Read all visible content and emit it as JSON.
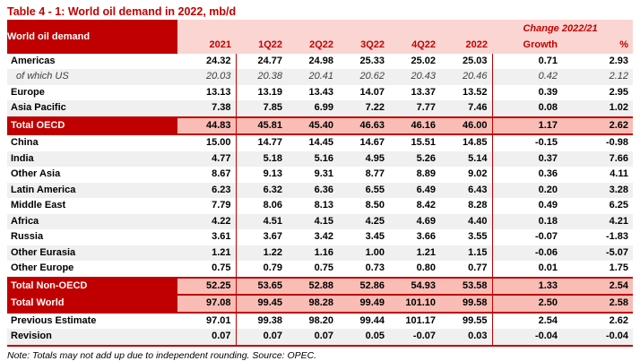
{
  "title": "Table 4 - 1: World oil demand in 2022, mb/d",
  "note": "Note: Totals may not add up due to independent rounding. Source: OPEC.",
  "colors": {
    "dark_red": "#C00000",
    "border_red": "#C00000",
    "header_pink": "#FBD5D1",
    "total_pink": "#F9BDB5",
    "stripe_gray": "#F0F0F0"
  },
  "table": {
    "corner_label": "World oil demand",
    "change_group_label": "Change 2022/21",
    "columns": [
      "2021",
      "1Q22",
      "2Q22",
      "3Q22",
      "4Q22",
      "2022",
      "Growth",
      "%"
    ],
    "rows": [
      {
        "label": "Americas",
        "style": "plain",
        "shade": false,
        "values": [
          "24.32",
          "24.77",
          "24.98",
          "25.33",
          "25.02",
          "25.03",
          "0.71",
          "2.93"
        ]
      },
      {
        "label": "of which US",
        "style": "italic",
        "shade": true,
        "values": [
          "20.03",
          "20.38",
          "20.41",
          "20.62",
          "20.43",
          "20.46",
          "0.42",
          "2.12"
        ]
      },
      {
        "label": "Europe",
        "style": "plain",
        "shade": false,
        "values": [
          "13.13",
          "13.19",
          "13.43",
          "14.07",
          "13.37",
          "13.52",
          "0.39",
          "2.95"
        ]
      },
      {
        "label": "Asia Pacific",
        "style": "plain",
        "shade": true,
        "values": [
          "7.38",
          "7.85",
          "6.99",
          "7.22",
          "7.77",
          "7.46",
          "0.08",
          "1.02"
        ]
      },
      {
        "label": "Total OECD",
        "style": "total",
        "shade": false,
        "values": [
          "44.83",
          "45.81",
          "45.40",
          "46.63",
          "46.16",
          "46.00",
          "1.17",
          "2.62"
        ]
      },
      {
        "label": "China",
        "style": "plain",
        "shade": false,
        "values": [
          "15.00",
          "14.77",
          "14.45",
          "14.67",
          "15.51",
          "14.85",
          "-0.15",
          "-0.98"
        ]
      },
      {
        "label": "India",
        "style": "plain",
        "shade": true,
        "values": [
          "4.77",
          "5.18",
          "5.16",
          "4.95",
          "5.26",
          "5.14",
          "0.37",
          "7.66"
        ]
      },
      {
        "label": "Other Asia",
        "style": "plain",
        "shade": false,
        "values": [
          "8.67",
          "9.13",
          "9.31",
          "8.77",
          "8.89",
          "9.02",
          "0.36",
          "4.11"
        ]
      },
      {
        "label": "Latin America",
        "style": "plain",
        "shade": true,
        "values": [
          "6.23",
          "6.32",
          "6.36",
          "6.55",
          "6.49",
          "6.43",
          "0.20",
          "3.28"
        ]
      },
      {
        "label": "Middle East",
        "style": "plain",
        "shade": false,
        "values": [
          "7.79",
          "8.06",
          "8.13",
          "8.50",
          "8.42",
          "8.28",
          "0.49",
          "6.25"
        ]
      },
      {
        "label": "Africa",
        "style": "plain",
        "shade": true,
        "values": [
          "4.22",
          "4.51",
          "4.15",
          "4.25",
          "4.69",
          "4.40",
          "0.18",
          "4.21"
        ]
      },
      {
        "label": "Russia",
        "style": "plain",
        "shade": false,
        "values": [
          "3.61",
          "3.67",
          "3.42",
          "3.45",
          "3.66",
          "3.55",
          "-0.07",
          "-1.83"
        ]
      },
      {
        "label": "Other Eurasia",
        "style": "plain",
        "shade": true,
        "values": [
          "1.21",
          "1.22",
          "1.16",
          "1.00",
          "1.21",
          "1.15",
          "-0.06",
          "-5.07"
        ]
      },
      {
        "label": "Other Europe",
        "style": "plain",
        "shade": false,
        "values": [
          "0.75",
          "0.79",
          "0.75",
          "0.73",
          "0.80",
          "0.77",
          "0.01",
          "1.75"
        ]
      },
      {
        "label": "Total Non-OECD",
        "style": "total",
        "shade": false,
        "values": [
          "52.25",
          "53.65",
          "52.88",
          "52.86",
          "54.93",
          "53.58",
          "1.33",
          "2.54"
        ]
      },
      {
        "label": "Total World",
        "style": "total",
        "shade": false,
        "values": [
          "97.08",
          "99.45",
          "98.28",
          "99.49",
          "101.10",
          "99.58",
          "2.50",
          "2.58"
        ]
      },
      {
        "label": "Previous Estimate",
        "style": "plain",
        "shade": false,
        "values": [
          "97.01",
          "99.38",
          "98.20",
          "99.44",
          "101.17",
          "99.55",
          "2.54",
          "2.62"
        ]
      },
      {
        "label": "Revision",
        "style": "plain",
        "shade": true,
        "values": [
          "0.07",
          "0.07",
          "0.07",
          "0.05",
          "-0.07",
          "0.03",
          "-0.04",
          "-0.04"
        ]
      }
    ]
  }
}
